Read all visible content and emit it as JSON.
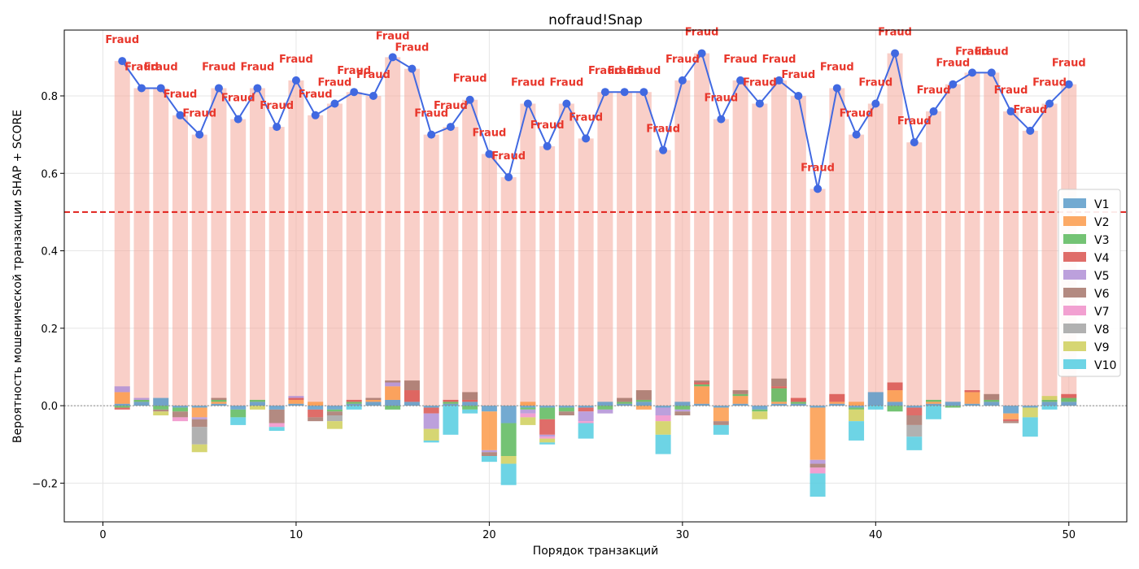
{
  "chart_data": {
    "type": "bar",
    "title": "nofraud!Snap",
    "xlabel": "Порядок транзакций",
    "ylabel": "Вероятность мошенической транзакции SHAP + SCORE",
    "xlim": [
      -2,
      53
    ],
    "ylim": [
      -0.3,
      0.97
    ],
    "x_ticks": [
      0,
      10,
      20,
      30,
      40,
      50
    ],
    "y_ticks": [
      -0.2,
      0.0,
      0.2,
      0.4,
      0.6,
      0.8
    ],
    "y_tick_labels": [
      "−0.2",
      "0.0",
      "0.2",
      "0.4",
      "0.6",
      "0.8"
    ],
    "threshold": 0.5,
    "grid": true,
    "legend_position": "right",
    "point_label": "Fraud",
    "x": [
      1,
      2,
      3,
      4,
      5,
      6,
      7,
      8,
      9,
      10,
      11,
      12,
      13,
      14,
      15,
      16,
      17,
      18,
      19,
      20,
      21,
      22,
      23,
      24,
      25,
      26,
      27,
      28,
      29,
      30,
      31,
      32,
      33,
      34,
      35,
      36,
      37,
      38,
      39,
      40,
      41,
      42,
      43,
      44,
      45,
      46,
      47,
      48,
      49,
      50
    ],
    "score": [
      0.89,
      0.82,
      0.82,
      0.75,
      0.7,
      0.82,
      0.74,
      0.82,
      0.72,
      0.84,
      0.75,
      0.78,
      0.81,
      0.8,
      0.9,
      0.87,
      0.7,
      0.72,
      0.79,
      0.65,
      0.59,
      0.78,
      0.67,
      0.78,
      0.69,
      0.81,
      0.81,
      0.81,
      0.66,
      0.84,
      0.91,
      0.74,
      0.84,
      0.78,
      0.84,
      0.8,
      0.56,
      0.82,
      0.7,
      0.78,
      0.91,
      0.68,
      0.76,
      0.83,
      0.86,
      0.86,
      0.76,
      0.71,
      0.78,
      0.83
    ],
    "series": [
      {
        "name": "V1",
        "color": "#5b9bc9",
        "values": [
          0.005,
          0.01,
          0.02,
          -0.005,
          -0.005,
          0.005,
          -0.01,
          0.01,
          -0.01,
          0.005,
          -0.01,
          -0.01,
          0.005,
          0.01,
          0.015,
          0.01,
          -0.005,
          0.005,
          0.01,
          -0.015,
          -0.045,
          -0.005,
          -0.005,
          -0.005,
          -0.005,
          0.01,
          0.005,
          0.01,
          -0.005,
          0.01,
          0.005,
          -0.005,
          0.005,
          -0.01,
          0.005,
          0.005,
          -0.005,
          0.005,
          -0.005,
          0.035,
          0.01,
          -0.005,
          0.005,
          0.01,
          0.005,
          0.01,
          -0.02,
          -0.005,
          0.01,
          0.01
        ]
      },
      {
        "name": "V2",
        "color": "#fb9a4a",
        "values": [
          0.03,
          0.0,
          0.0,
          0.0,
          -0.025,
          0.005,
          0.0,
          0.0,
          0.0,
          0.01,
          0.01,
          0.0,
          0.0,
          0.005,
          0.035,
          0.0,
          0.0,
          0.0,
          0.0,
          -0.1,
          0.0,
          0.01,
          0.0,
          0.0,
          0.0,
          0.0,
          0.0,
          -0.01,
          0.0,
          0.0,
          0.045,
          -0.035,
          0.02,
          0.0,
          0.005,
          0.0,
          -0.135,
          0.005,
          0.01,
          0.0,
          0.03,
          0.0,
          0.005,
          0.0,
          0.03,
          0.0,
          -0.015,
          0.0,
          0.0,
          0.0
        ]
      },
      {
        "name": "V3",
        "color": "#5cb85c",
        "values": [
          -0.005,
          0.005,
          -0.01,
          -0.01,
          0.0,
          0.005,
          -0.02,
          0.005,
          0.0,
          0.0,
          0.0,
          -0.005,
          0.005,
          0.0,
          -0.01,
          0.0,
          0.0,
          0.005,
          -0.01,
          0.0,
          -0.085,
          -0.005,
          -0.03,
          -0.01,
          0.0,
          -0.01,
          0.005,
          0.005,
          0.0,
          -0.01,
          0.005,
          0.0,
          0.005,
          -0.005,
          0.035,
          0.005,
          0.0,
          0.0,
          -0.005,
          0.0,
          -0.015,
          0.0,
          0.005,
          -0.005,
          0.0,
          0.005,
          0.0,
          0.0,
          0.005,
          0.01
        ]
      },
      {
        "name": "V4",
        "color": "#d9534f",
        "values": [
          -0.005,
          0.0,
          0.0,
          0.0,
          0.0,
          0.0,
          0.0,
          0.0,
          0.0,
          0.005,
          -0.02,
          0.0,
          0.005,
          0.0,
          0.0,
          0.03,
          -0.015,
          0.005,
          0.005,
          0.0,
          0.0,
          0.0,
          -0.04,
          0.0,
          -0.01,
          0.0,
          0.0,
          0.0,
          0.0,
          0.0,
          0.005,
          0.0,
          0.0,
          0.0,
          0.005,
          0.01,
          0.0,
          0.02,
          0.0,
          0.0,
          0.02,
          -0.02,
          0.0,
          0.0,
          0.005,
          0.0,
          -0.005,
          0.0,
          0.0,
          0.01
        ]
      },
      {
        "name": "V5",
        "color": "#b08fd6",
        "values": [
          0.015,
          0.005,
          0.0,
          0.0,
          -0.005,
          0.0,
          0.0,
          0.0,
          0.0,
          0.005,
          0.0,
          0.0,
          0.0,
          0.0,
          0.01,
          0.0,
          -0.04,
          0.0,
          0.0,
          -0.005,
          0.0,
          -0.01,
          -0.005,
          0.0,
          -0.025,
          -0.01,
          0.0,
          0.0,
          -0.02,
          -0.005,
          0.0,
          0.0,
          0.0,
          0.0,
          0.0,
          0.0,
          -0.01,
          0.0,
          0.0,
          0.0,
          0.0,
          0.0,
          0.0,
          0.0,
          0.0,
          0.0,
          0.0,
          0.0,
          0.0,
          0.0
        ]
      },
      {
        "name": "V6",
        "color": "#a6766b",
        "values": [
          0.0,
          0.0,
          -0.005,
          -0.015,
          -0.02,
          0.005,
          0.0,
          0.0,
          -0.035,
          0.0,
          -0.01,
          -0.01,
          0.0,
          0.005,
          0.005,
          0.025,
          0.0,
          0.0,
          0.02,
          -0.01,
          0.0,
          0.0,
          0.0,
          -0.01,
          0.0,
          0.0,
          0.01,
          0.025,
          0.0,
          -0.01,
          0.005,
          -0.01,
          0.01,
          0.0,
          0.02,
          0.0,
          -0.01,
          0.0,
          0.0,
          0.0,
          0.0,
          -0.025,
          0.0,
          0.0,
          0.0,
          0.015,
          -0.005,
          0.0,
          0.0,
          0.0
        ]
      },
      {
        "name": "V7",
        "color": "#f08fc9",
        "values": [
          0.0,
          0.0,
          0.0,
          -0.01,
          0.0,
          0.0,
          0.0,
          0.0,
          -0.01,
          0.0,
          0.0,
          0.0,
          0.0,
          0.0,
          0.0,
          0.0,
          0.0,
          0.0,
          0.0,
          0.0,
          0.0,
          -0.01,
          -0.005,
          0.0,
          -0.005,
          0.0,
          0.0,
          0.0,
          -0.015,
          0.0,
          0.0,
          0.0,
          0.0,
          0.0,
          0.0,
          0.0,
          -0.015,
          0.0,
          0.0,
          0.0,
          0.0,
          0.0,
          0.0,
          0.0,
          0.0,
          0.0,
          0.0,
          0.0,
          0.0,
          0.0
        ]
      },
      {
        "name": "V8",
        "color": "#a3a3a3",
        "values": [
          0.0,
          0.0,
          0.0,
          0.0,
          -0.045,
          0.0,
          0.0,
          0.0,
          0.0,
          0.0,
          0.0,
          -0.015,
          0.0,
          0.0,
          0.0,
          0.0,
          0.0,
          0.0,
          0.0,
          0.0,
          0.0,
          0.0,
          0.0,
          0.0,
          0.0,
          0.0,
          0.0,
          0.0,
          0.0,
          0.0,
          0.0,
          0.0,
          0.0,
          0.0,
          0.0,
          0.0,
          0.0,
          0.0,
          0.0,
          0.0,
          0.0,
          -0.03,
          0.0,
          0.0,
          0.0,
          0.0,
          0.0,
          0.0,
          0.0,
          0.0
        ]
      },
      {
        "name": "V9",
        "color": "#cfcf5a",
        "values": [
          0.0,
          0.0,
          -0.01,
          0.0,
          -0.02,
          0.0,
          0.0,
          -0.01,
          0.0,
          0.0,
          0.0,
          -0.02,
          0.0,
          0.0,
          0.0,
          0.0,
          -0.03,
          0.0,
          0.0,
          0.0,
          -0.02,
          -0.02,
          -0.01,
          0.0,
          0.0,
          0.0,
          0.0,
          0.0,
          -0.035,
          0.0,
          0.0,
          0.0,
          0.0,
          -0.02,
          0.0,
          0.0,
          0.0,
          0.0,
          -0.03,
          0.0,
          0.0,
          0.0,
          0.0,
          0.0,
          0.0,
          0.0,
          0.0,
          -0.025,
          0.01,
          0.0
        ]
      },
      {
        "name": "V10",
        "color": "#54cde0",
        "values": [
          0.0,
          0.0,
          0.0,
          0.0,
          0.0,
          0.0,
          -0.02,
          0.0,
          -0.01,
          0.0,
          0.0,
          0.0,
          -0.01,
          0.0,
          0.0,
          0.0,
          -0.005,
          -0.075,
          -0.01,
          -0.015,
          -0.055,
          0.0,
          -0.005,
          0.0,
          -0.04,
          0.0,
          0.0,
          0.0,
          -0.05,
          0.0,
          0.0,
          -0.025,
          0.0,
          0.0,
          0.0,
          0.0,
          -0.06,
          0.0,
          -0.05,
          -0.01,
          0.0,
          -0.035,
          -0.035,
          0.0,
          0.0,
          0.0,
          0.0,
          -0.05,
          -0.01,
          0.0
        ]
      }
    ]
  }
}
